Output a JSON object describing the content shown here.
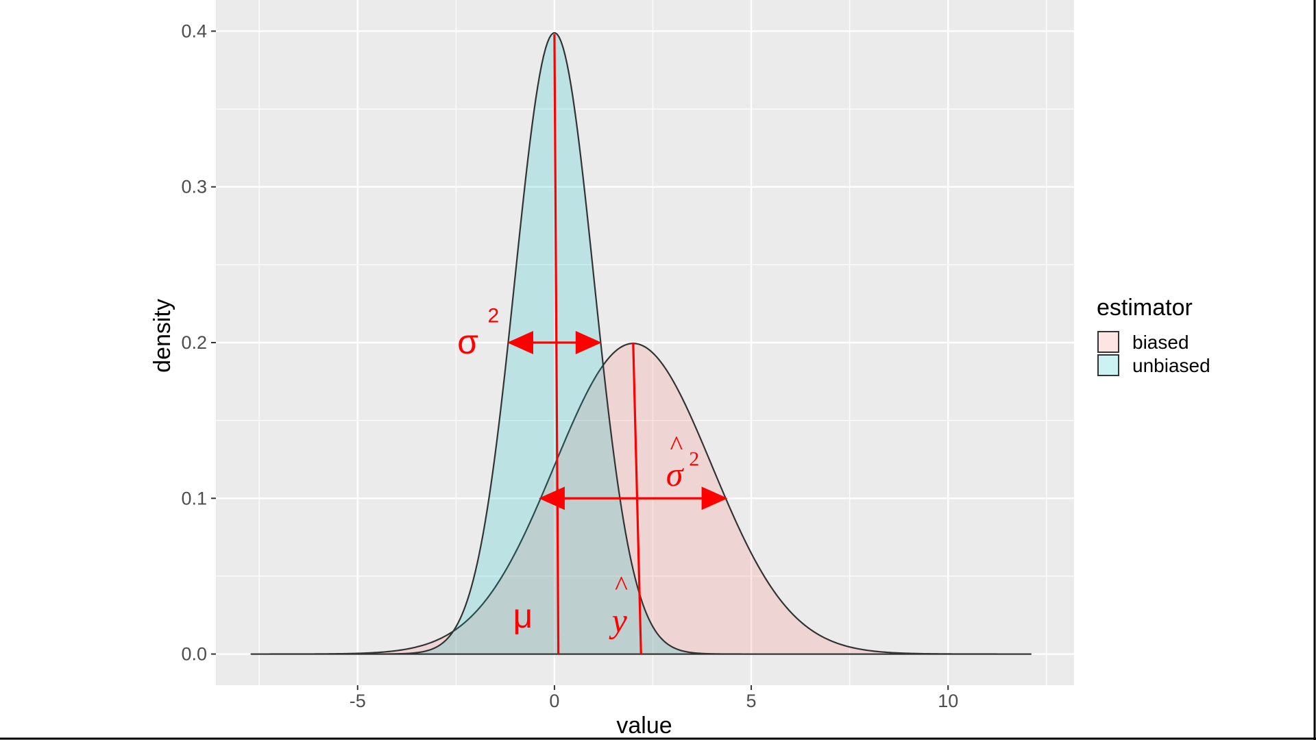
{
  "chart_data": {
    "type": "area",
    "xlabel": "value",
    "ylabel": "density",
    "xlim": [
      -8.6,
      13.2
    ],
    "ylim": [
      -0.02,
      0.42
    ],
    "x_ticks": [
      -5,
      0,
      5,
      10
    ],
    "x_tick_labels": [
      "-5",
      "0",
      "5",
      "10"
    ],
    "y_ticks": [
      0.0,
      0.1,
      0.2,
      0.3,
      0.4
    ],
    "y_tick_labels": [
      "0.0",
      "0.1",
      "0.2",
      "0.3",
      "0.4"
    ],
    "grid": true,
    "legend": {
      "title": "estimator",
      "position": "right",
      "entries": [
        "biased",
        "unbiased"
      ]
    },
    "series": [
      {
        "name": "biased",
        "color": "#f8766d",
        "mean": 2,
        "sd": 2,
        "peak_density": 0.2,
        "x_range": [
          -7.7,
          12.1
        ]
      },
      {
        "name": "unbiased",
        "color": "#00bfc4",
        "mean": 0,
        "sd": 1,
        "peak_density": 0.4,
        "x_range": [
          -7.7,
          12.1
        ]
      }
    ],
    "annotations": [
      {
        "name": "mu",
        "base": "μ",
        "line_x": [
          0,
          0.1
        ],
        "line_y": [
          0.398,
          0.0
        ]
      },
      {
        "name": "y-hat",
        "base": "y",
        "hat": "^",
        "line_x": [
          2.0,
          2.2
        ],
        "line_y": [
          0.2,
          0.0
        ]
      },
      {
        "name": "sigma-squared",
        "base": "σ",
        "sup": "2",
        "arrow_x": [
          -1.2,
          1.2
        ],
        "arrow_y": 0.2
      },
      {
        "name": "sigma-hat-squared",
        "base": "σ",
        "hat": "^",
        "sup": "2",
        "arrow_x": [
          -0.4,
          4.4
        ],
        "arrow_y": 0.1
      }
    ],
    "colors": {
      "panel": "#ebebeb",
      "grid": "#ffffff",
      "annotation": "#ff0000",
      "curve_outline": "#333333"
    }
  }
}
